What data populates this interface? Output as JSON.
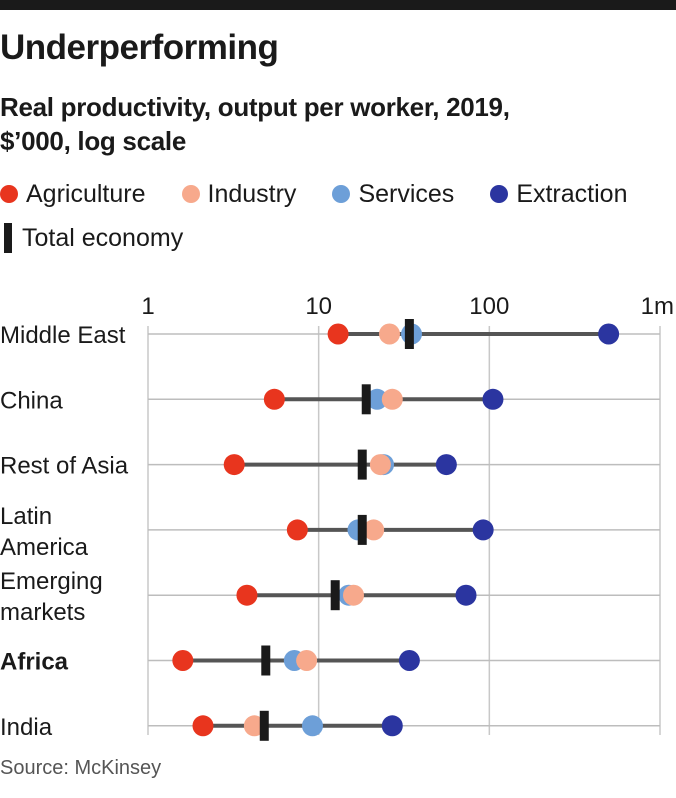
{
  "header": {
    "title": "Underperforming",
    "subtitle": "Real productivity, output per worker, 2019, $’000, log scale"
  },
  "legend": {
    "items": [
      {
        "label": "Agriculture",
        "color": "#e8351e"
      },
      {
        "label": "Industry",
        "color": "#f7a98c"
      },
      {
        "label": "Services",
        "color": "#6d9fd8"
      },
      {
        "label": "Extraction",
        "color": "#2b35a0"
      }
    ],
    "total": {
      "label": "Total economy",
      "color": "#1a1a1a"
    }
  },
  "chart_data": {
    "type": "scatter",
    "title": "Underperforming",
    "subtitle": "Real productivity, output per worker, 2019, $’000, log scale",
    "scale": "log",
    "xlim": [
      1,
      1000
    ],
    "ticks": [
      {
        "value": 1,
        "label": "1"
      },
      {
        "value": 10,
        "label": "10"
      },
      {
        "value": 100,
        "label": "100"
      },
      {
        "value": 1000,
        "label": "1m"
      }
    ],
    "grid": true,
    "legend_position": "top",
    "series_names": [
      "Agriculture",
      "Industry",
      "Services",
      "Extraction"
    ],
    "total_name": "Total economy",
    "rows": [
      {
        "label": [
          "Middle East"
        ],
        "bold": false,
        "agriculture": 13,
        "industry": 26,
        "services": 35,
        "extraction": 500,
        "total": 34
      },
      {
        "label": [
          "China"
        ],
        "bold": false,
        "agriculture": 5.5,
        "industry": 27,
        "services": 22,
        "extraction": 105,
        "total": 19
      },
      {
        "label": [
          "Rest of Asia"
        ],
        "bold": false,
        "agriculture": 3.2,
        "industry": 23,
        "services": 24,
        "extraction": 56,
        "total": 18
      },
      {
        "label": [
          "Latin",
          "America"
        ],
        "bold": false,
        "agriculture": 7.5,
        "industry": 21,
        "services": 17,
        "extraction": 92,
        "total": 18
      },
      {
        "label": [
          "Emerging",
          "markets"
        ],
        "bold": false,
        "agriculture": 3.8,
        "industry": 16,
        "services": 15,
        "extraction": 73,
        "total": 12.5
      },
      {
        "label": [
          "Africa"
        ],
        "bold": true,
        "agriculture": 1.6,
        "industry": 8.5,
        "services": 7.2,
        "extraction": 34,
        "total": 4.9
      },
      {
        "label": [
          "India"
        ],
        "bold": false,
        "agriculture": 2.1,
        "industry": 4.2,
        "services": 9.2,
        "extraction": 27,
        "total": 4.8
      }
    ]
  },
  "footer": {
    "source": "Source: McKinsey"
  }
}
